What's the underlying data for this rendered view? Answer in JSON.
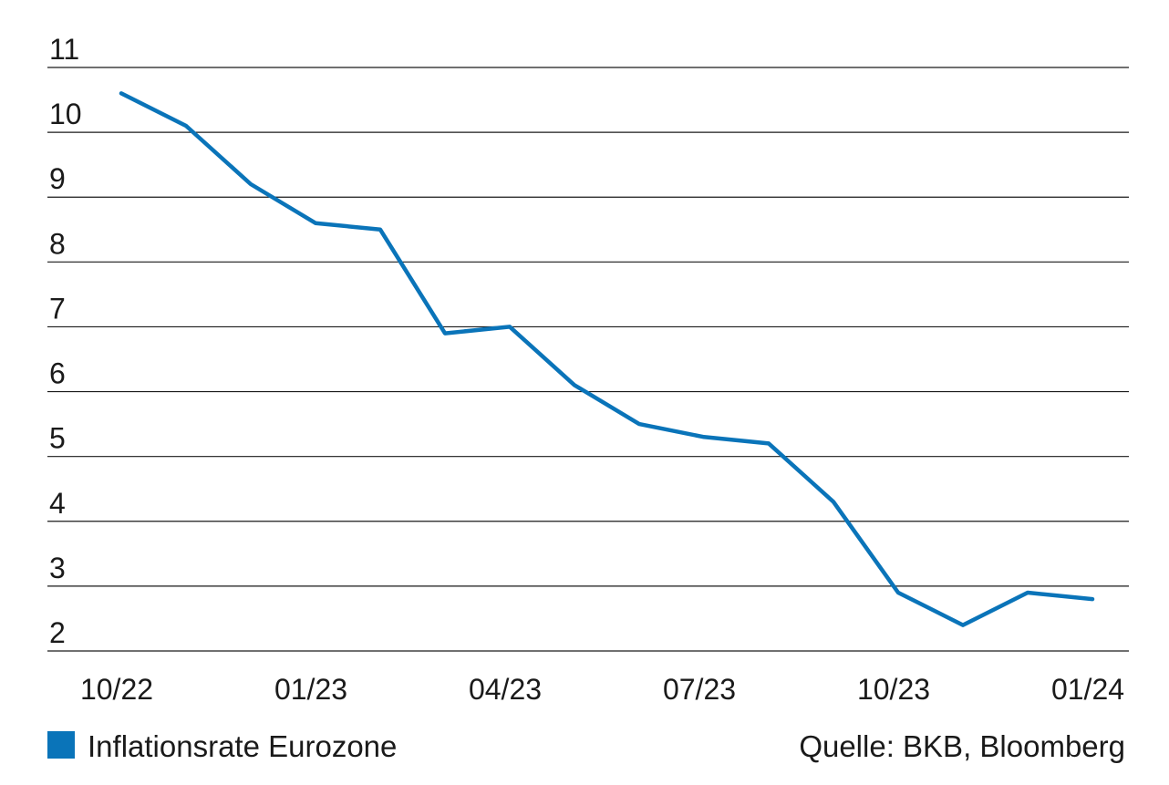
{
  "chart_data": {
    "type": "line",
    "title": "",
    "xlabel": "",
    "ylabel": "",
    "ylim": [
      2,
      11
    ],
    "y_ticks": [
      "2",
      "3",
      "4",
      "5",
      "6",
      "7",
      "8",
      "9",
      "10",
      "11"
    ],
    "x_ticks": [
      "10/22",
      "01/23",
      "04/23",
      "07/23",
      "10/23",
      "01/24"
    ],
    "grid": "horizontal",
    "legend_position": "bottom-left",
    "line_color": "#0a74b9",
    "grid_color": "#1a1a1a",
    "series": [
      {
        "name": "Inflationsrate Eurozone",
        "x": [
          "2022-10",
          "2022-11",
          "2022-12",
          "2023-01",
          "2023-02",
          "2023-03",
          "2023-04",
          "2023-05",
          "2023-06",
          "2023-07",
          "2023-08",
          "2023-09",
          "2023-10",
          "2023-11",
          "2023-12",
          "2024-01"
        ],
        "values": [
          10.6,
          10.1,
          9.2,
          8.6,
          8.5,
          6.9,
          7.0,
          6.1,
          5.5,
          5.3,
          5.2,
          4.3,
          2.9,
          2.4,
          2.9,
          2.8
        ]
      }
    ]
  },
  "legend": {
    "label": "Inflationsrate Eurozone",
    "swatch_color": "#0a74b9"
  },
  "source": {
    "text": "Quelle: BKB, Bloomberg"
  }
}
